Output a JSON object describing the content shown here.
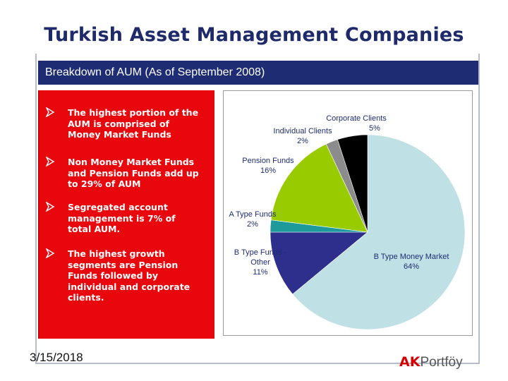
{
  "title": "Turkish Asset Management Companies",
  "banner": "Breakdown of AUM (As of September 2008)",
  "bullets": [
    {
      "line1": "The highest portion of the",
      "line2": "AUM is comprised of",
      "line3": "Money Market Funds"
    },
    {
      "line1": "Non Money Market Funds",
      "line2": "and Pension Funds add up",
      "line3": "to 29% of AUM"
    },
    {
      "line1": "Segregated account",
      "line2": "management is 7% of",
      "line3": "total AUM."
    },
    {
      "line1": "The highest growth",
      "line2": "segments are Pension",
      "line3": "Funds followed by",
      "line4": "individual and corporate",
      "line5": "clients."
    }
  ],
  "date": "3/15/2018",
  "logo": {
    "ak": "AK",
    "rest": "Portföy"
  },
  "colors": {
    "title": "#1f2a6b",
    "banner": "#1e2d73",
    "panel": "#e8070c",
    "logo": "#d40000"
  },
  "chart_data": {
    "type": "pie",
    "slices": [
      {
        "name": "B Type Money Market",
        "value": 64,
        "label": "64%",
        "color": "#bfe0e4"
      },
      {
        "name": "B Type Funds - Other",
        "value": 11,
        "label": "11%",
        "color": "#2e2e8c"
      },
      {
        "name": "A Type Funds",
        "value": 2,
        "label": "2%",
        "color": "#1e9a9a"
      },
      {
        "name": "Pension Funds",
        "value": 16,
        "label": "16%",
        "color": "#99cc00"
      },
      {
        "name": "Individual Clients",
        "value": 2,
        "label": "2%",
        "color": "#8c8c8c"
      },
      {
        "name": "Corporate Clients",
        "value": 5,
        "label": "5%",
        "color": "#000000"
      }
    ]
  }
}
